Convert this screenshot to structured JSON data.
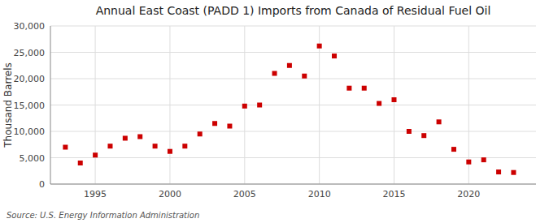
{
  "chart_data": {
    "type": "scatter",
    "title": "Annual East Coast (PADD 1) Imports from Canada of Residual Fuel Oil",
    "ylabel": "Thousand Barrels",
    "annotations": [
      "Source: U.S. Energy Information Administration"
    ],
    "x": [
      1993,
      1994,
      1995,
      1996,
      1997,
      1998,
      1999,
      2000,
      2001,
      2002,
      2003,
      2004,
      2005,
      2006,
      2007,
      2008,
      2009,
      2010,
      2011,
      2012,
      2013,
      2014,
      2015,
      2016,
      2017,
      2018,
      2019,
      2020,
      2021,
      2022,
      2023
    ],
    "values": [
      7000,
      4000,
      5500,
      7200,
      8700,
      9000,
      7200,
      6200,
      7200,
      9500,
      11500,
      11000,
      14800,
      15000,
      21000,
      22500,
      20500,
      26200,
      24300,
      18200,
      18200,
      15300,
      16000,
      10000,
      9200,
      11800,
      6600,
      4200,
      4600,
      2300,
      2200
    ],
    "color": "#cc0000",
    "marker": "square",
    "grid": true,
    "xlim": [
      1992,
      2024.5
    ],
    "ylim": [
      0,
      30000
    ],
    "xticks": [
      1995,
      2000,
      2005,
      2010,
      2015,
      2020
    ],
    "yticks": [
      0,
      {
        "value": 5000,
        "label": "5,000"
      },
      {
        "value": 10000,
        "label": "10,000"
      },
      {
        "value": 15000,
        "label": "15,000"
      },
      {
        "value": 20000,
        "label": "20,000"
      },
      {
        "value": 25000,
        "label": "25,000"
      },
      {
        "value": 30000,
        "label": "30,000"
      }
    ]
  }
}
